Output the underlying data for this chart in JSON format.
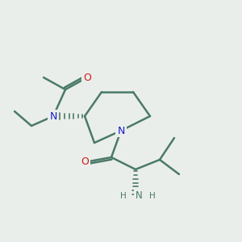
{
  "bg_color": "#eaeeea",
  "bond_color": "#4a7a6a",
  "bond_width": 1.8,
  "N_color": "#1a1acc",
  "O_color": "#cc1a1a",
  "NH2_color": "#4a7a6a",
  "fig_size": [
    3.0,
    3.0
  ],
  "dpi": 100,
  "xlim": [
    0,
    10
  ],
  "ylim": [
    0,
    10
  ]
}
